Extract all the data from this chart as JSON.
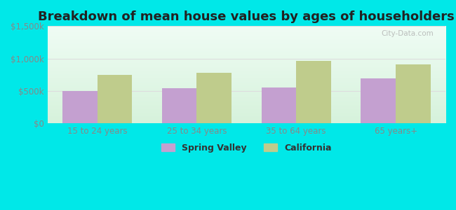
{
  "title": "Breakdown of mean house values by ages of householders",
  "categories": [
    "15 to 24 years",
    "25 to 34 years",
    "35 to 64 years",
    "65 years+"
  ],
  "spring_valley": [
    500000,
    540000,
    560000,
    700000
  ],
  "california": [
    750000,
    780000,
    960000,
    910000
  ],
  "bar_color_sv": "#c4a0d0",
  "bar_color_ca": "#bfcc8c",
  "ylim": [
    0,
    1500000
  ],
  "yticks": [
    0,
    500000,
    1000000,
    1500000
  ],
  "ytick_labels": [
    "$0",
    "$500k",
    "$1,000k",
    "$1,500k"
  ],
  "legend_sv": "Spring Valley",
  "legend_ca": "California",
  "background_outer": "#00e8e8",
  "title_fontsize": 13,
  "watermark": "City-Data.com",
  "tick_color": "#888888",
  "grid_color": "#dddddd"
}
